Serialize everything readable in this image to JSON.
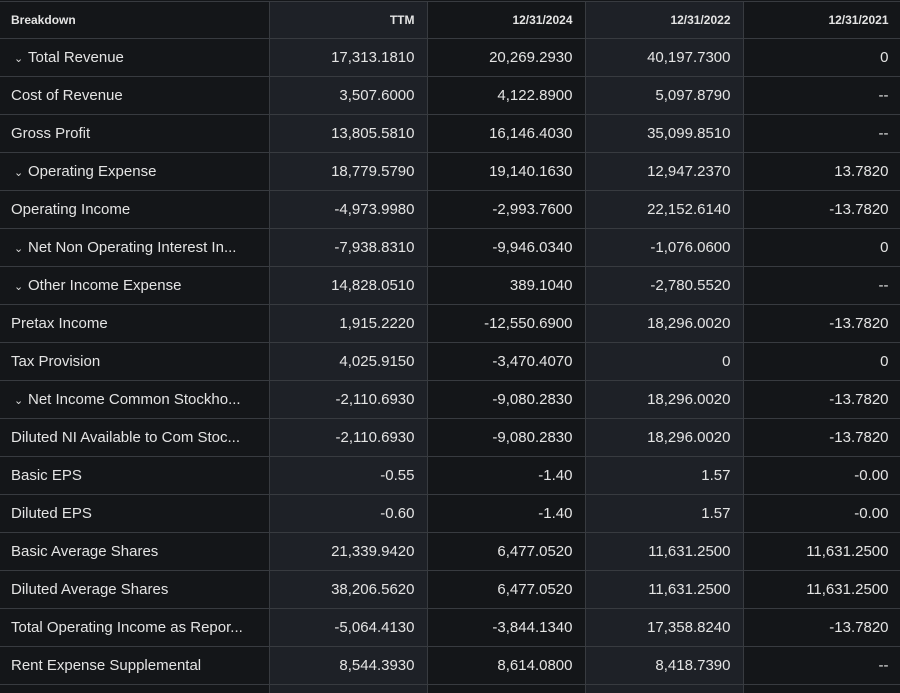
{
  "headers": [
    "Breakdown",
    "TTM",
    "12/31/2024",
    "12/31/2022",
    "12/31/2021"
  ],
  "rows": [
    {
      "label": "Total Revenue",
      "expand": true,
      "values": [
        "17,313.1810",
        "20,269.2930",
        "40,197.7300",
        "0"
      ]
    },
    {
      "label": "Cost of Revenue",
      "expand": false,
      "values": [
        "3,507.6000",
        "4,122.8900",
        "5,097.8790",
        "--"
      ]
    },
    {
      "label": "Gross Profit",
      "expand": false,
      "values": [
        "13,805.5810",
        "16,146.4030",
        "35,099.8510",
        "--"
      ]
    },
    {
      "label": "Operating Expense",
      "expand": true,
      "values": [
        "18,779.5790",
        "19,140.1630",
        "12,947.2370",
        "13.7820"
      ]
    },
    {
      "label": "Operating Income",
      "expand": false,
      "values": [
        "-4,973.9980",
        "-2,993.7600",
        "22,152.6140",
        "-13.7820"
      ]
    },
    {
      "label": "Net Non Operating Interest In...",
      "expand": true,
      "values": [
        "-7,938.8310",
        "-9,946.0340",
        "-1,076.0600",
        "0"
      ]
    },
    {
      "label": "Other Income Expense",
      "expand": true,
      "values": [
        "14,828.0510",
        "389.1040",
        "-2,780.5520",
        "--"
      ]
    },
    {
      "label": "Pretax Income",
      "expand": false,
      "values": [
        "1,915.2220",
        "-12,550.6900",
        "18,296.0020",
        "-13.7820"
      ]
    },
    {
      "label": "Tax Provision",
      "expand": false,
      "values": [
        "4,025.9150",
        "-3,470.4070",
        "0",
        "0"
      ]
    },
    {
      "label": "Net Income Common Stockho...",
      "expand": true,
      "values": [
        "-2,110.6930",
        "-9,080.2830",
        "18,296.0020",
        "-13.7820"
      ]
    },
    {
      "label": "Diluted NI Available to Com Stoc...",
      "expand": false,
      "values": [
        "-2,110.6930",
        "-9,080.2830",
        "18,296.0020",
        "-13.7820"
      ]
    },
    {
      "label": "Basic EPS",
      "expand": false,
      "values": [
        "-0.55",
        "-1.40",
        "1.57",
        "-0.00"
      ]
    },
    {
      "label": "Diluted EPS",
      "expand": false,
      "values": [
        "-0.60",
        "-1.40",
        "1.57",
        "-0.00"
      ]
    },
    {
      "label": "Basic Average Shares",
      "expand": false,
      "values": [
        "21,339.9420",
        "6,477.0520",
        "11,631.2500",
        "11,631.2500"
      ]
    },
    {
      "label": "Diluted Average Shares",
      "expand": false,
      "values": [
        "38,206.5620",
        "6,477.0520",
        "11,631.2500",
        "11,631.2500"
      ]
    },
    {
      "label": "Total Operating Income as Repor...",
      "expand": false,
      "values": [
        "-5,064.4130",
        "-3,844.1340",
        "17,358.8240",
        "-13.7820"
      ]
    },
    {
      "label": "Rent Expense Supplemental",
      "expand": false,
      "values": [
        "8,544.3930",
        "8,614.0800",
        "8,418.7390",
        "--"
      ]
    }
  ],
  "chevron_glyph": "⌄"
}
